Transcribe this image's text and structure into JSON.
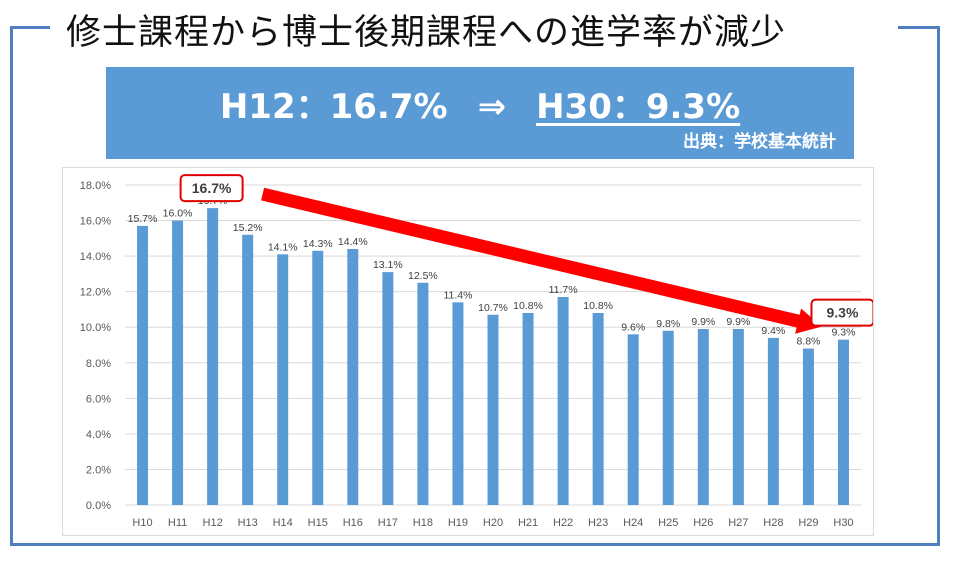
{
  "title": "修士課程から博士後期課程への進学率が減少",
  "banner": {
    "from_text": "H12：16.7%",
    "arrow": "⇒",
    "to_text": "H30：9.3%",
    "source": "出典：学校基本統計"
  },
  "colors": {
    "frame": "#4f7fc0",
    "banner_bg": "#5b9bd5",
    "bar": "#5b9bd5",
    "highlight": "#ff0000",
    "callout_border": "#e00000"
  },
  "chart_data": {
    "type": "bar",
    "categories": [
      "H10",
      "H11",
      "H12",
      "H13",
      "H14",
      "H15",
      "H16",
      "H17",
      "H18",
      "H19",
      "H20",
      "H21",
      "H22",
      "H23",
      "H24",
      "H25",
      "H26",
      "H27",
      "H28",
      "H29",
      "H30"
    ],
    "values": [
      15.7,
      16.0,
      16.7,
      15.2,
      14.1,
      14.3,
      14.4,
      13.1,
      12.5,
      11.4,
      10.7,
      10.8,
      11.7,
      10.8,
      9.6,
      9.8,
      9.9,
      9.9,
      9.4,
      8.8,
      9.3
    ],
    "data_labels": [
      "15.7%",
      "16.0%",
      "16.7%",
      "15.2%",
      "14.1%",
      "14.3%",
      "14.4%",
      "13.1%",
      "12.5%",
      "11.4%",
      "10.7%",
      "10.8%",
      "11.7%",
      "10.8%",
      "9.6%",
      "9.8%",
      "9.9%",
      "9.9%",
      "9.4%",
      "8.8%",
      "9.3%"
    ],
    "yticks": [
      "0.0%",
      "2.0%",
      "4.0%",
      "6.0%",
      "8.0%",
      "10.0%",
      "12.0%",
      "14.0%",
      "16.0%",
      "18.0%"
    ],
    "ylim": [
      0,
      18
    ],
    "grid": true,
    "callouts": [
      {
        "category": "H12",
        "label": "16.7%"
      },
      {
        "category": "H30",
        "label": "9.3%"
      }
    ],
    "trend_arrow": {
      "from": "H12",
      "to": "H30"
    }
  }
}
